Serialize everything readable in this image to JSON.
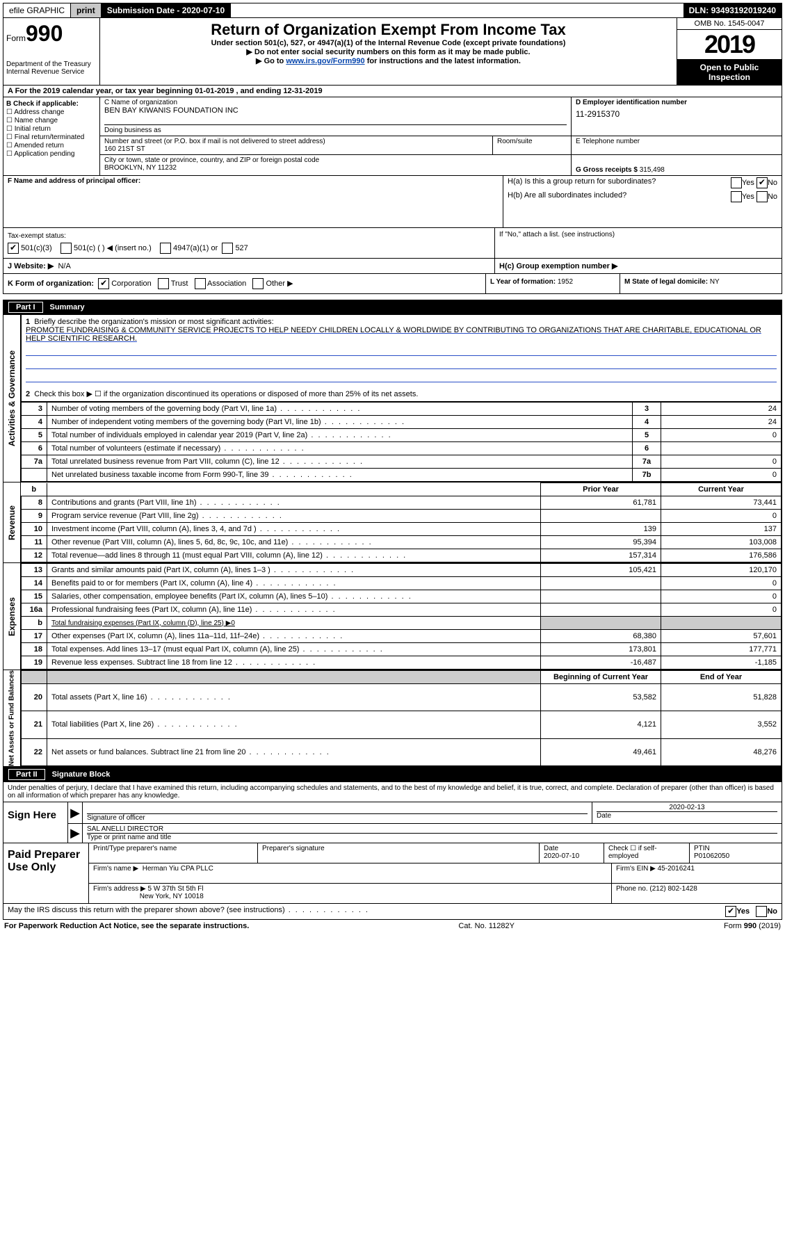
{
  "topbar": {
    "efile": "efile GRAPHIC",
    "print": "print",
    "submission_label": "Submission Date - ",
    "submission_date": "2020-07-10",
    "dln_label": "DLN: ",
    "dln": "93493192019240"
  },
  "header": {
    "form_label": "Form",
    "form_number": "990",
    "dept": "Department of the Treasury\nInternal Revenue Service",
    "title": "Return of Organization Exempt From Income Tax",
    "sub1": "Under section 501(c), 527, or 4947(a)(1) of the Internal Revenue Code (except private foundations)",
    "sub2": "▶ Do not enter social security numbers on this form as it may be made public.",
    "sub3_pre": "▶ Go to ",
    "sub3_link": "www.irs.gov/Form990",
    "sub3_post": " for instructions and the latest information.",
    "omb": "OMB No. 1545-0047",
    "year": "2019",
    "inspect": "Open to Public Inspection"
  },
  "row_a": "A For the 2019 calendar year, or tax year beginning 01-01-2019   , and ending 12-31-2019",
  "col_b": {
    "label": "B Check if applicable:",
    "opts": [
      "Address change",
      "Name change",
      "Initial return",
      "Final return/terminated",
      "Amended return",
      "Application pending"
    ]
  },
  "col_c": {
    "name_label": "C Name of organization",
    "name": "BEN BAY KIWANIS FOUNDATION INC",
    "dba_label": "Doing business as",
    "addr_label": "Number and street (or P.O. box if mail is not delivered to street address)",
    "addr": "160 21ST ST",
    "room_label": "Room/suite",
    "city_label": "City or town, state or province, country, and ZIP or foreign postal code",
    "city": "BROOKLYN, NY  11232"
  },
  "col_d": {
    "label": "D Employer identification number",
    "ein": "11-2915370"
  },
  "col_e": {
    "label": "E Telephone number"
  },
  "col_g": {
    "label": "G Gross receipts $ ",
    "value": "315,498"
  },
  "col_f": {
    "label": "F  Name and address of principal officer:"
  },
  "col_h": {
    "ha": "H(a)  Is this a group return for subordinates?",
    "hb": "H(b)  Are all subordinates included?",
    "hb_note": "If \"No,\" attach a list. (see instructions)",
    "hc": "H(c)  Group exemption number ▶",
    "yes": "Yes",
    "no": "No"
  },
  "tax_status": {
    "label": "Tax-exempt status:",
    "opts": [
      "501(c)(3)",
      "501(c) (  ) ◀ (insert no.)",
      "4947(a)(1) or",
      "527"
    ]
  },
  "website": {
    "label": "J   Website: ▶",
    "value": "N/A"
  },
  "row_k": {
    "label": "K Form of organization:",
    "opts": [
      "Corporation",
      "Trust",
      "Association",
      "Other ▶"
    ]
  },
  "row_l": {
    "label": "L Year of formation: ",
    "value": "1952"
  },
  "row_m": {
    "label": "M State of legal domicile: ",
    "value": "NY"
  },
  "part1": {
    "num": "Part I",
    "title": "Summary",
    "q1": "Briefly describe the organization's mission or most significant activities:",
    "mission": "PROMOTE FUNDRAISING & COMMUNITY SERVICE PROJECTS TO HELP NEEDY CHILDREN LOCALLY & WORLDWIDE BY CONTRIBUTING TO ORGANIZATIONS THAT ARE CHARITABLE, EDUCATIONAL OR HELP SCIENTIFIC RESEARCH.",
    "q2": "Check this box ▶ ☐  if the organization discontinued its operations or disposed of more than 25% of its net assets.",
    "side_activities": "Activities & Governance",
    "side_revenue": "Revenue",
    "side_expenses": "Expenses",
    "side_net": "Net Assets or Fund Balances",
    "hdr_prior": "Prior Year",
    "hdr_current": "Current Year",
    "hdr_begin": "Beginning of Current Year",
    "hdr_end": "End of Year",
    "rows_gov": [
      {
        "n": "3",
        "d": "Number of voting members of the governing body (Part VI, line 1a)",
        "b": "3",
        "v": "24"
      },
      {
        "n": "4",
        "d": "Number of independent voting members of the governing body (Part VI, line 1b)",
        "b": "4",
        "v": "24"
      },
      {
        "n": "5",
        "d": "Total number of individuals employed in calendar year 2019 (Part V, line 2a)",
        "b": "5",
        "v": "0"
      },
      {
        "n": "6",
        "d": "Total number of volunteers (estimate if necessary)",
        "b": "6",
        "v": ""
      },
      {
        "n": "7a",
        "d": "Total unrelated business revenue from Part VIII, column (C), line 12",
        "b": "7a",
        "v": "0"
      },
      {
        "n": "",
        "d": "Net unrelated business taxable income from Form 990-T, line 39",
        "b": "7b",
        "v": "0"
      }
    ],
    "rows_rev": [
      {
        "n": "8",
        "d": "Contributions and grants (Part VIII, line 1h)",
        "p": "61,781",
        "c": "73,441"
      },
      {
        "n": "9",
        "d": "Program service revenue (Part VIII, line 2g)",
        "p": "",
        "c": "0"
      },
      {
        "n": "10",
        "d": "Investment income (Part VIII, column (A), lines 3, 4, and 7d )",
        "p": "139",
        "c": "137"
      },
      {
        "n": "11",
        "d": "Other revenue (Part VIII, column (A), lines 5, 6d, 8c, 9c, 10c, and 11e)",
        "p": "95,394",
        "c": "103,008"
      },
      {
        "n": "12",
        "d": "Total revenue—add lines 8 through 11 (must equal Part VIII, column (A), line 12)",
        "p": "157,314",
        "c": "176,586"
      }
    ],
    "rows_exp": [
      {
        "n": "13",
        "d": "Grants and similar amounts paid (Part IX, column (A), lines 1–3 )",
        "p": "105,421",
        "c": "120,170"
      },
      {
        "n": "14",
        "d": "Benefits paid to or for members (Part IX, column (A), line 4)",
        "p": "",
        "c": "0"
      },
      {
        "n": "15",
        "d": "Salaries, other compensation, employee benefits (Part IX, column (A), lines 5–10)",
        "p": "",
        "c": "0"
      },
      {
        "n": "16a",
        "d": "Professional fundraising fees (Part IX, column (A), line 11e)",
        "p": "",
        "c": "0"
      },
      {
        "n": "b",
        "d": "Total fundraising expenses (Part IX, column (D), line 25) ▶0",
        "p": "SHADE",
        "c": "SHADE"
      },
      {
        "n": "17",
        "d": "Other expenses (Part IX, column (A), lines 11a–11d, 11f–24e)",
        "p": "68,380",
        "c": "57,601"
      },
      {
        "n": "18",
        "d": "Total expenses. Add lines 13–17 (must equal Part IX, column (A), line 25)",
        "p": "173,801",
        "c": "177,771"
      },
      {
        "n": "19",
        "d": "Revenue less expenses. Subtract line 18 from line 12",
        "p": "-16,487",
        "c": "-1,185"
      }
    ],
    "rows_net": [
      {
        "n": "20",
        "d": "Total assets (Part X, line 16)",
        "p": "53,582",
        "c": "51,828"
      },
      {
        "n": "21",
        "d": "Total liabilities (Part X, line 26)",
        "p": "4,121",
        "c": "3,552"
      },
      {
        "n": "22",
        "d": "Net assets or fund balances. Subtract line 21 from line 20",
        "p": "49,461",
        "c": "48,276"
      }
    ]
  },
  "part2": {
    "num": "Part II",
    "title": "Signature Block",
    "decl": "Under penalties of perjury, I declare that I have examined this return, including accompanying schedules and statements, and to the best of my knowledge and belief, it is true, correct, and complete. Declaration of preparer (other than officer) is based on all information of which preparer has any knowledge."
  },
  "sign": {
    "here": "Sign Here",
    "sig_label": "Signature of officer",
    "date_label": "Date",
    "date": "2020-02-13",
    "name": "SAL ANELLI  DIRECTOR",
    "name_label": "Type or print name and title"
  },
  "prep": {
    "title": "Paid Preparer Use Only",
    "print_label": "Print/Type preparer's name",
    "sig_label": "Preparer's signature",
    "date_label": "Date",
    "date": "2020-07-10",
    "check_label": "Check ☐ if self-employed",
    "ptin_label": "PTIN",
    "ptin": "P01062050",
    "firm_name_label": "Firm's name    ▶",
    "firm_name": "Herman Yiu CPA PLLC",
    "firm_ein_label": "Firm's EIN ▶",
    "firm_ein": "45-2016241",
    "firm_addr_label": "Firm's address ▶",
    "firm_addr1": "5 W 37th St 5th Fl",
    "firm_addr2": "New York, NY  10018",
    "phone_label": "Phone no. ",
    "phone": "(212) 802-1428"
  },
  "discuss": {
    "q": "May the IRS discuss this return with the preparer shown above? (see instructions)",
    "yes": "Yes",
    "no": "No"
  },
  "footer": {
    "left": "For Paperwork Reduction Act Notice, see the separate instructions.",
    "mid": "Cat. No. 11282Y",
    "right": "Form 990 (2019)"
  }
}
